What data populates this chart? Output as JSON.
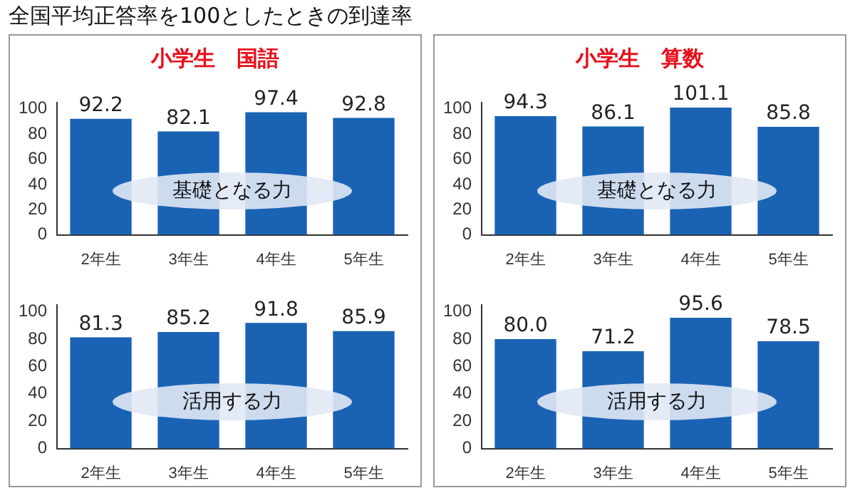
{
  "chart_data": [
    {
      "type": "bar",
      "title": "全国平均正答率を100としたときの到達率",
      "subtitle": "小学生　国語",
      "categories": [
        "2年生",
        "3年生",
        "4年生",
        "5年生"
      ],
      "values": [
        92.2,
        82.1,
        97.4,
        92.8
      ],
      "color": "#1a63b4",
      "ylim": [
        0,
        105
      ],
      "yticks": [
        0,
        20,
        40,
        60,
        80,
        100
      ],
      "data_labels": true,
      "annotations": [
        "基礎となる力"
      ]
    },
    {
      "type": "bar",
      "subtitle": "小学生　算数",
      "categories": [
        "2年生",
        "3年生",
        "4年生",
        "5年生"
      ],
      "values": [
        94.3,
        86.1,
        101.1,
        85.8
      ],
      "color": "#1a63b4",
      "ylim": [
        0,
        105
      ],
      "yticks": [
        0,
        20,
        40,
        60,
        80,
        100
      ],
      "data_labels": true,
      "annotations": [
        "基礎となる力"
      ]
    },
    {
      "type": "bar",
      "categories": [
        "2年生",
        "3年生",
        "4年生",
        "5年生"
      ],
      "values": [
        81.3,
        85.2,
        91.8,
        85.9
      ],
      "color": "#1a63b4",
      "ylim": [
        0,
        105
      ],
      "yticks": [
        0,
        20,
        40,
        60,
        80,
        100
      ],
      "data_labels": true,
      "annotations": [
        "活用する力"
      ]
    },
    {
      "type": "bar",
      "categories": [
        "2年生",
        "3年生",
        "4年生",
        "5年生"
      ],
      "values": [
        80.0,
        71.2,
        95.6,
        78.5
      ],
      "value_labels": [
        "80.0",
        "71.2",
        "95.6",
        "78.5"
      ],
      "color": "#1a63b4",
      "ylim": [
        0,
        105
      ],
      "yticks": [
        0,
        20,
        40,
        60,
        80,
        100
      ],
      "annotations": [
        "活用する力"
      ]
    }
  ]
}
